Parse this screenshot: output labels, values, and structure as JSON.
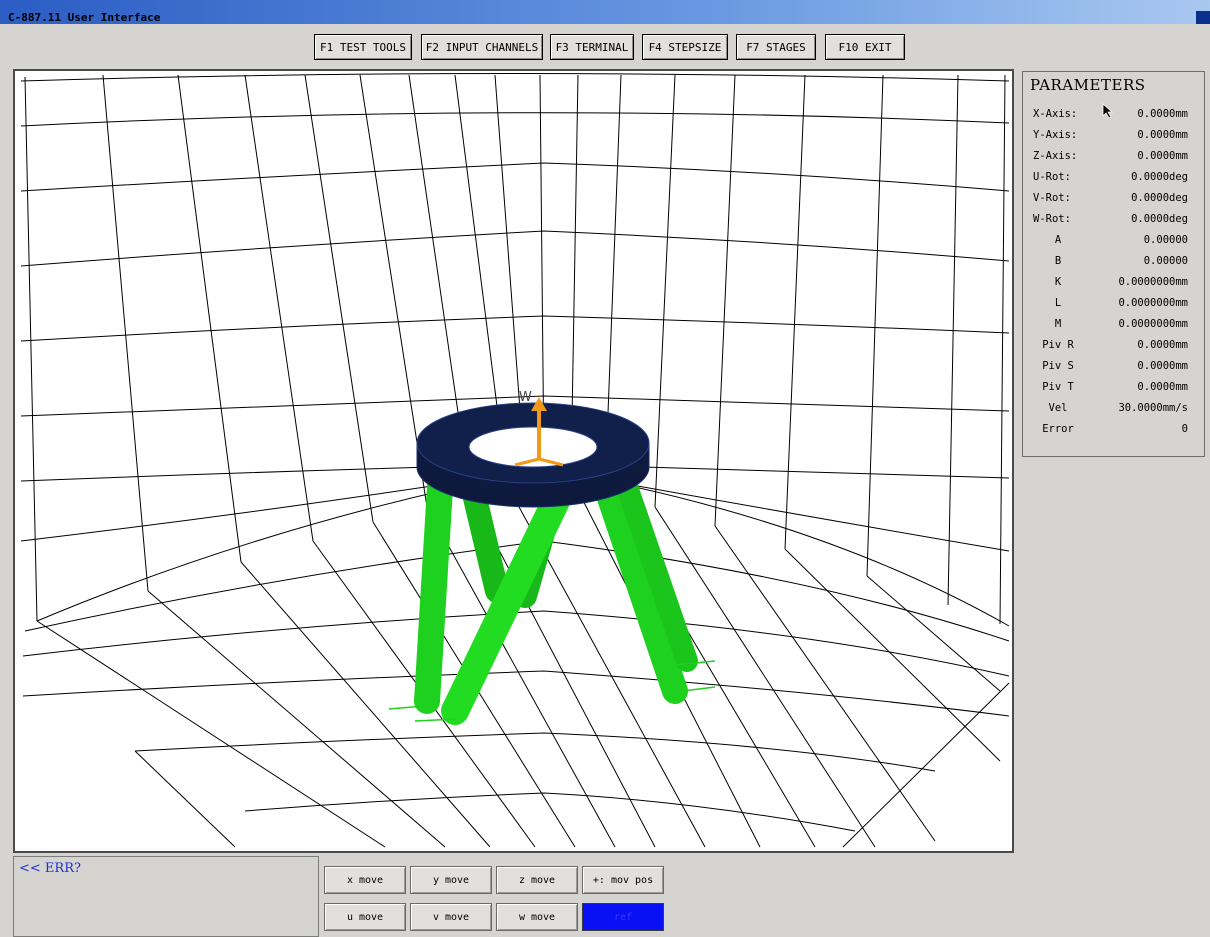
{
  "window": {
    "title": "C-887.11 User Interface"
  },
  "toolbar": {
    "buttons": [
      {
        "label": "F1 TEST TOOLS"
      },
      {
        "label": "F2 INPUT CHANNELS"
      },
      {
        "label": "F3 TERMINAL"
      },
      {
        "label": "F4 STEPSIZE"
      },
      {
        "label": "F7 STAGES"
      },
      {
        "label": "F10 EXIT"
      }
    ]
  },
  "viewport": {
    "axis_label": "W",
    "colors": {
      "legs": "#1ed11e",
      "platform": "#0d1a3d",
      "axis_arrow": "#f09a18",
      "grid": "#000000"
    }
  },
  "parameters": {
    "heading": "PARAMETERS",
    "rows": [
      {
        "label": "X-Axis:",
        "value": "0.0000mm"
      },
      {
        "label": "Y-Axis:",
        "value": "0.0000mm"
      },
      {
        "label": "Z-Axis:",
        "value": "0.0000mm"
      },
      {
        "label": "U-Rot:",
        "value": "0.0000deg"
      },
      {
        "label": "V-Rot:",
        "value": "0.0000deg"
      },
      {
        "label": "W-Rot:",
        "value": "0.0000deg"
      },
      {
        "label": "A",
        "value": "0.00000"
      },
      {
        "label": "B",
        "value": "0.00000"
      },
      {
        "label": "K",
        "value": "0.0000000mm"
      },
      {
        "label": "L",
        "value": "0.0000000mm"
      },
      {
        "label": "M",
        "value": "0.0000000mm"
      },
      {
        "label": "Piv R",
        "value": "0.0000mm"
      },
      {
        "label": "Piv S",
        "value": "0.0000mm"
      },
      {
        "label": "Piv T",
        "value": "0.0000mm"
      },
      {
        "label": "Vel",
        "value": "30.0000mm/s"
      },
      {
        "label": "Error",
        "value": "0"
      }
    ]
  },
  "command": {
    "text": "<< ERR?"
  },
  "move_buttons": {
    "x": "x move",
    "y": "y move",
    "z": "z move",
    "mov_pos": "+: mov pos",
    "u": "u move",
    "v": "v move",
    "w": "w move",
    "ref": "ref"
  }
}
